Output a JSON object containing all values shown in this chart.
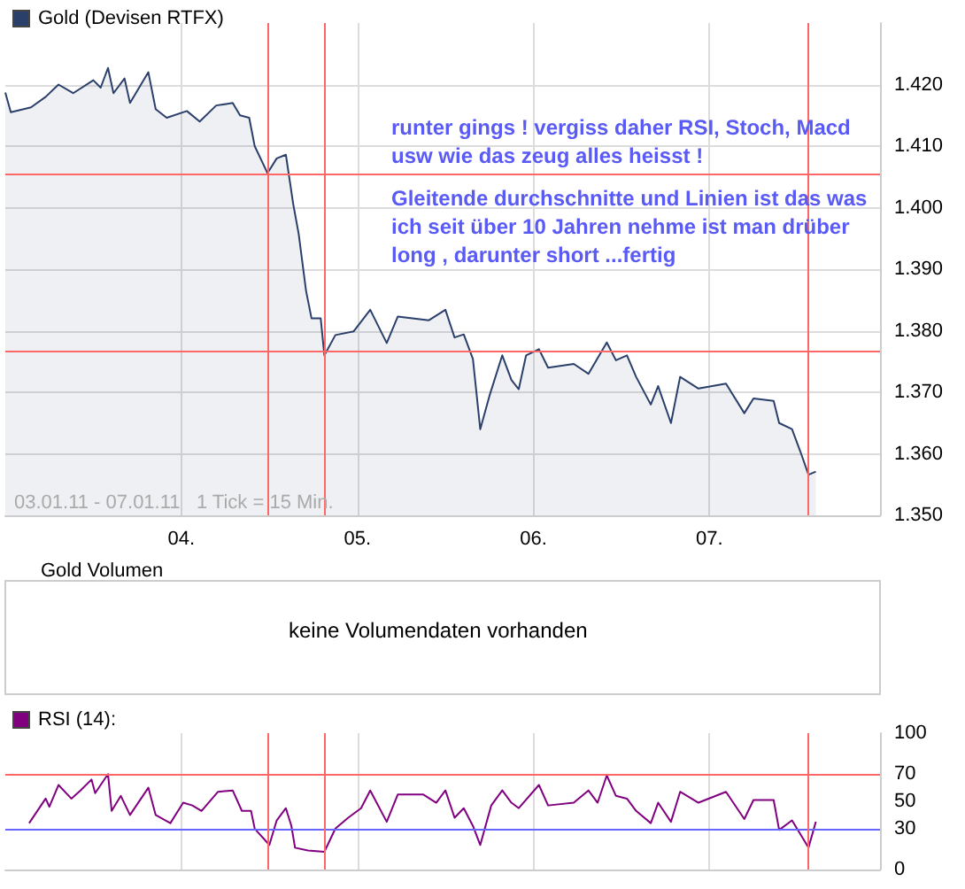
{
  "chart_data": [
    {
      "type": "area",
      "legend": "top left",
      "grid": true,
      "series": [
        {
          "name": "Gold (Devisen RTFX)",
          "color": "#2b3f6b",
          "x": [
            "--01-03T00:00",
            "--01-03T00:45",
            "--01-03T03:30",
            "--01-03T05:30",
            "--01-03T07:15",
            "--01-03T09:15",
            "--01-03T12:00",
            "--01-03T13:00",
            "--01-03T14:00",
            "--01-03T14:45",
            "--01-03T16:15",
            "--01-03T17:00",
            "--01-03T19:30",
            "--01-03T20:30",
            "--01-03T22:00",
            "--01-04T00:45",
            "--01-04T02:30",
            "--01-04T04:45",
            "--01-04T07:00",
            "--01-04T08:00",
            "--01-04T09:15",
            "--01-04T10:00",
            "--01-04T11:45",
            "--01-04T13:00",
            "--01-04T14:15",
            "--01-04T15:15",
            "--01-04T16:00",
            "--01-04T17:00",
            "--01-04T17:45",
            "--01-04T19:00",
            "--01-04T19:30",
            "--01-04T21:00",
            "--01-04T23:30",
            "--01-05T01:45",
            "--01-05T04:00",
            "--01-05T05:30",
            "--01-05T09:45",
            "--01-05T12:00",
            "--01-05T13:15",
            "--01-05T14:30",
            "--01-05T15:45",
            "--01-05T16:45",
            "--01-05T18:00",
            "--01-05T19:45",
            "--01-05T21:00",
            "--01-05T22:00",
            "--01-05T23:00",
            "--01-06T00:45",
            "--01-06T02:00",
            "--01-06T05:30",
            "--01-06T07:30",
            "--01-06T10:00",
            "--01-06T11:15",
            "--01-06T12:45",
            "--01-06T14:00",
            "--01-06T16:00",
            "--01-06T17:00",
            "--01-06T18:45",
            "--01-06T20:00",
            "--01-06T22:30",
            "--01-07T02:15",
            "--01-07T04:45",
            "--01-07T06:00",
            "--01-07T08:45",
            "--01-07T09:30",
            "--01-07T11:15",
            "--01-07T12:30",
            "--01-07T13:30",
            "--01-07T14:30"
          ],
          "values": [
            1.4187,
            1.4155,
            1.4163,
            1.418,
            1.42,
            1.4186,
            1.4207,
            1.4195,
            1.4227,
            1.4186,
            1.421,
            1.417,
            1.422,
            1.416,
            1.4146,
            1.4157,
            1.414,
            1.4166,
            1.417,
            1.415,
            1.4146,
            1.41,
            1.4056,
            1.408,
            1.4086,
            1.4006,
            1.3957,
            1.3865,
            1.382,
            1.382,
            1.376,
            1.3793,
            1.3799,
            1.3834,
            1.378,
            1.3823,
            1.3817,
            1.3834,
            1.3789,
            1.3794,
            1.3754,
            1.364,
            1.3694,
            1.376,
            1.372,
            1.3705,
            1.376,
            1.377,
            1.374,
            1.3746,
            1.373,
            1.3781,
            1.3752,
            1.376,
            1.3725,
            1.368,
            1.371,
            1.365,
            1.3725,
            1.3706,
            1.3714,
            1.3666,
            1.369,
            1.3686,
            1.365,
            1.364,
            1.36,
            1.3566,
            1.3571
          ]
        }
      ],
      "xlim": [
        "--01-03T00:00",
        "--01-07T23:15"
      ],
      "xticks": [
        {
          "value": "--01-04",
          "label": "04."
        },
        {
          "value": "--01-05",
          "label": "05."
        },
        {
          "value": "--01-06",
          "label": "06."
        },
        {
          "value": "--01-07",
          "label": "07."
        }
      ],
      "ylim": [
        1.35,
        1.43
      ],
      "yticks": [
        {
          "value": 1.35,
          "label": "1.350"
        },
        {
          "value": 1.36,
          "label": "1.360"
        },
        {
          "value": 1.37,
          "label": "1.370"
        },
        {
          "value": 1.38,
          "label": "1.380"
        },
        {
          "value": 1.39,
          "label": "1.390"
        },
        {
          "value": 1.4,
          "label": "1.400"
        },
        {
          "value": 1.41,
          "label": "1.410"
        },
        {
          "value": 1.42,
          "label": "1.420"
        }
      ],
      "ref_lines": [
        {
          "axis": "y",
          "value": 1.4055,
          "color": "#ff6666"
        },
        {
          "axis": "y",
          "value": 1.3768,
          "color": "#ff6666"
        },
        {
          "axis": "x",
          "value": "--01-04T11:45",
          "color": "#ff6666"
        },
        {
          "axis": "x",
          "value": "--01-04T19:30",
          "color": "#ff6666"
        },
        {
          "axis": "x",
          "value": "--01-07T13:30",
          "color": "#ff6666"
        }
      ],
      "annotations": [
        "runter gings ! vergiss daher RSI, Stoch, Macd\nusw wie das zeug alles heisst !",
        "Gleitende durchschnitte und Linien ist das was\nich seit über 10 Jahren nehme ist man drüber\nlong , darunter short ...fertig",
        "03.01.11 - 07.01.11   1 Tick = 15 Min."
      ]
    },
    {
      "type": "other",
      "title": "Gold Volumen",
      "annotations": [
        "keine Volumendaten vorhanden"
      ]
    },
    {
      "type": "line",
      "legend": "top left",
      "grid": "x",
      "tick_labels": "y",
      "series": [
        {
          "name": "RSI (14):",
          "color": "#800080",
          "x": [
            "--01-03T03:15",
            "--01-03T05:30",
            "--01-03T06:00",
            "--01-03T07:15",
            "--01-03T09:00",
            "--01-03T10:15",
            "--01-03T11:45",
            "--01-03T12:15",
            "--01-03T14:00",
            "--01-03T14:30",
            "--01-03T15:45",
            "--01-03T17:00",
            "--01-03T19:30",
            "--01-03T20:30",
            "--01-03T22:30",
            "--01-04T00:15",
            "--01-04T01:30",
            "--01-04T02:45",
            "--01-04T05:00",
            "--01-04T07:00",
            "--01-04T08:15",
            "--01-04T09:30",
            "--01-04T10:00",
            "--01-04T12:00",
            "--01-04T13:00",
            "--01-04T14:15",
            "--01-04T15:00",
            "--01-04T15:30",
            "--01-04T17:15",
            "--01-04T19:30",
            "--01-04T21:00",
            "--01-04T22:45",
            "--01-05T00:30",
            "--01-05T01:45",
            "--01-05T04:00",
            "--01-05T05:30",
            "--01-05T09:00",
            "--01-05T10:45",
            "--01-05T12:00",
            "--01-05T13:15",
            "--01-05T14:30",
            "--01-05T15:45",
            "--01-05T16:45",
            "--01-05T18:15",
            "--01-05T19:45",
            "--01-05T21:00",
            "--01-05T22:00",
            "--01-06T00:45",
            "--01-06T02:00",
            "--01-06T05:30",
            "--01-06T07:30",
            "--01-06T08:45",
            "--01-06T10:00",
            "--01-06T11:15",
            "--01-06T12:45",
            "--01-06T14:00",
            "--01-06T16:00",
            "--01-06T17:00",
            "--01-06T18:45",
            "--01-06T20:00",
            "--01-06T22:30",
            "--01-07T02:15",
            "--01-07T04:45",
            "--01-07T06:00",
            "--01-07T08:45",
            "--01-07T09:30",
            "--01-07T11:15",
            "--01-07T12:30",
            "--01-07T13:30",
            "--01-07T14:30"
          ],
          "values": [
            34,
            52,
            46,
            62,
            52,
            58,
            66,
            56,
            70,
            43,
            54,
            40,
            60,
            40,
            34,
            49,
            47,
            43,
            57,
            58,
            43,
            43,
            30,
            18,
            36,
            45,
            32,
            16,
            14,
            13,
            30,
            38,
            45,
            58,
            35,
            55,
            55,
            49,
            58,
            38,
            45,
            32,
            18,
            47,
            58,
            49,
            45,
            62,
            47,
            49,
            58,
            49,
            69,
            54,
            52,
            43,
            34,
            49,
            35,
            57,
            49,
            57,
            37,
            51,
            51,
            29,
            36,
            25,
            16,
            35
          ]
        }
      ],
      "xlim": [
        "--01-03T00:00",
        "--01-07T23:15"
      ],
      "xticks": [
        {
          "value": "--01-04",
          "label": null
        },
        {
          "value": "--01-05",
          "label": null
        },
        {
          "value": "--01-06",
          "label": null
        },
        {
          "value": "--01-07",
          "label": null
        }
      ],
      "ylim": [
        0,
        100
      ],
      "yticks": [
        0,
        30,
        50,
        70,
        100
      ],
      "ref_lines": [
        {
          "axis": "y",
          "value": 70,
          "color": "#ff6666"
        },
        {
          "axis": "y",
          "value": 30,
          "color": "#6666ff"
        },
        {
          "axis": "x",
          "value": "--01-04T11:45",
          "color": "#ff6666"
        },
        {
          "axis": "x",
          "value": "--01-04T19:30",
          "color": "#ff6666"
        },
        {
          "axis": "x",
          "value": "--01-07T13:30",
          "color": "#ff6666"
        }
      ]
    }
  ]
}
